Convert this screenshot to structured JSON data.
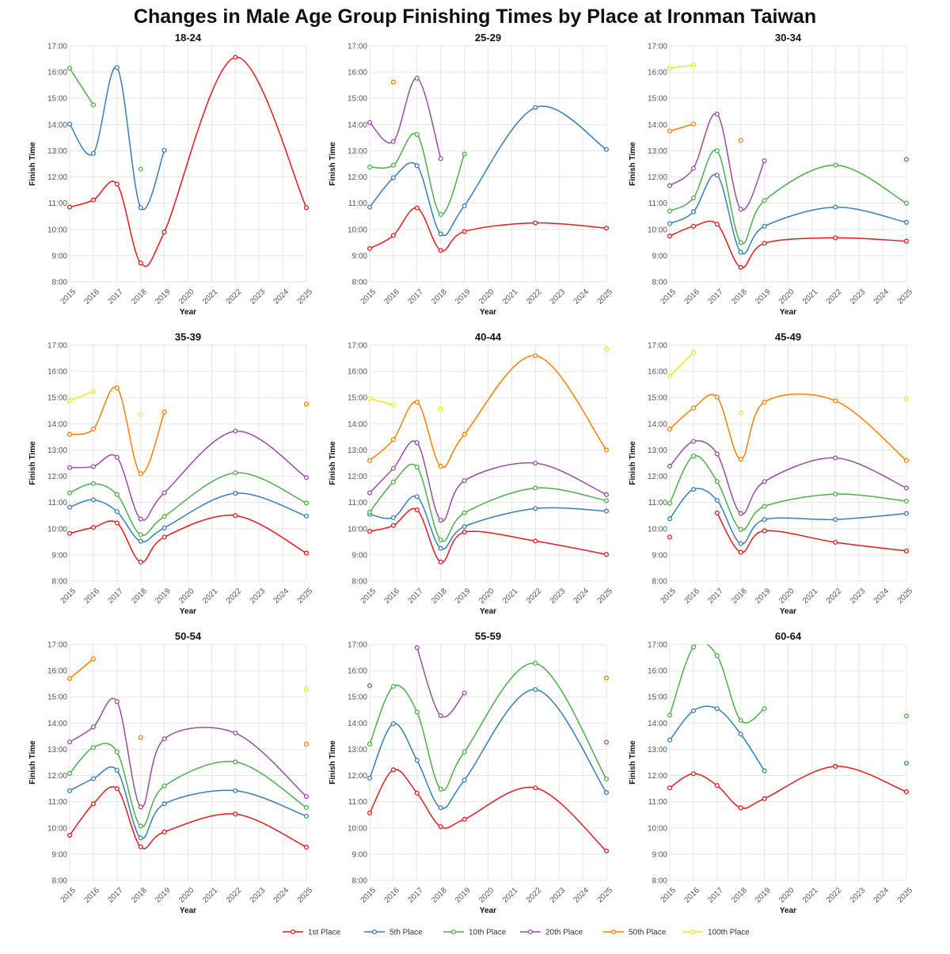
{
  "chart_data": {
    "type": "line",
    "title": "Changes in Male Age Group Finishing Times by Place at Ironman Taiwan",
    "xlabel": "Year",
    "ylabel": "Finish Time",
    "x_ticks": [
      "2015",
      "2016",
      "2017",
      "2018",
      "2019",
      "2020",
      "2021",
      "2022",
      "2023",
      "2024",
      "2025"
    ],
    "y_ticks": [
      "8:00",
      "9:00",
      "10:00",
      "11:00",
      "12:00",
      "13:00",
      "14:00",
      "15:00",
      "16:00",
      "17:00"
    ],
    "xlim": [
      2015,
      2025
    ],
    "ylim_hours": [
      8,
      17
    ],
    "years": [
      2015,
      2016,
      2017,
      2018,
      2019,
      2022,
      2025
    ],
    "value_units": "hours (decimal)",
    "grid": true,
    "legend_placement": "bottom-center",
    "series_meta": [
      {
        "name": "1st Place",
        "color": "#e41a1c"
      },
      {
        "name": "5th Place",
        "color": "#377eb8"
      },
      {
        "name": "10th Place",
        "color": "#4daf4a"
      },
      {
        "name": "20th Place",
        "color": "#984ea3"
      },
      {
        "name": "50th Place",
        "color": "#ff7f00"
      },
      {
        "name": "100th Place",
        "color": "#e8e82a"
      }
    ],
    "panels": [
      {
        "title": "18-24",
        "series": [
          [
            10.85,
            11.12,
            11.73,
            8.72,
            9.9,
            16.57,
            10.83
          ],
          [
            14.02,
            12.9,
            16.17,
            10.83,
            13.02,
            null,
            null
          ],
          [
            16.15,
            14.75,
            null,
            12.3,
            null,
            null,
            null
          ],
          [
            null,
            null,
            null,
            null,
            null,
            null,
            null
          ],
          [
            null,
            null,
            null,
            null,
            null,
            null,
            null
          ],
          [
            null,
            null,
            null,
            null,
            null,
            null,
            null
          ]
        ]
      },
      {
        "title": "25-29",
        "series": [
          [
            9.27,
            9.77,
            10.82,
            9.2,
            9.92,
            10.25,
            10.05
          ],
          [
            10.85,
            11.97,
            12.43,
            9.83,
            10.9,
            14.65,
            13.05
          ],
          [
            12.38,
            12.45,
            13.62,
            10.57,
            12.88,
            null,
            null
          ],
          [
            14.08,
            13.35,
            15.77,
            12.7,
            null,
            null,
            null
          ],
          [
            null,
            15.62,
            null,
            null,
            null,
            null,
            null
          ],
          [
            null,
            null,
            null,
            null,
            null,
            null,
            null
          ]
        ]
      },
      {
        "title": "30-34",
        "series": [
          [
            9.75,
            10.12,
            10.2,
            8.55,
            9.47,
            9.68,
            9.55
          ],
          [
            10.22,
            10.67,
            12.07,
            9.13,
            10.12,
            10.85,
            10.27
          ],
          [
            10.7,
            11.2,
            13.0,
            9.5,
            11.1,
            12.45,
            11.0
          ],
          [
            11.67,
            12.33,
            14.4,
            10.77,
            12.62,
            null,
            12.67
          ],
          [
            13.75,
            14.02,
            null,
            13.4,
            null,
            null,
            null
          ],
          [
            16.15,
            16.27,
            null,
            null,
            null,
            null,
            null
          ]
        ]
      },
      {
        "title": "35-39",
        "series": [
          [
            9.82,
            10.05,
            10.22,
            8.73,
            9.68,
            10.5,
            9.07
          ],
          [
            10.82,
            11.1,
            10.65,
            9.52,
            10.03,
            11.35,
            10.48
          ],
          [
            11.37,
            11.72,
            11.3,
            9.77,
            10.47,
            12.13,
            10.98
          ],
          [
            12.33,
            12.37,
            12.72,
            10.37,
            11.37,
            13.72,
            11.95
          ],
          [
            13.6,
            13.8,
            15.37,
            12.1,
            14.45,
            null,
            14.75
          ],
          [
            14.88,
            15.23,
            null,
            14.35,
            null,
            null,
            null
          ]
        ]
      },
      {
        "title": "40-44",
        "series": [
          [
            9.9,
            10.12,
            10.72,
            8.73,
            9.87,
            9.53,
            9.02
          ],
          [
            10.55,
            10.42,
            11.22,
            9.25,
            10.08,
            10.77,
            10.67
          ],
          [
            10.63,
            11.78,
            12.35,
            9.57,
            10.6,
            11.55,
            11.07
          ],
          [
            11.37,
            12.3,
            13.28,
            10.32,
            11.83,
            12.5,
            11.3
          ],
          [
            12.6,
            13.4,
            14.83,
            12.38,
            13.6,
            16.6,
            13.0
          ],
          [
            14.97,
            14.72,
            null,
            14.57,
            null,
            null,
            16.85
          ]
        ]
      },
      {
        "title": "45-49",
        "series": [
          [
            9.68,
            null,
            10.6,
            9.1,
            9.92,
            9.48,
            9.15
          ],
          [
            10.38,
            11.5,
            11.08,
            9.43,
            10.35,
            10.35,
            10.58
          ],
          [
            10.97,
            12.77,
            11.8,
            9.97,
            10.85,
            11.32,
            11.05
          ],
          [
            12.38,
            13.33,
            12.85,
            10.58,
            11.8,
            12.7,
            11.55
          ],
          [
            13.8,
            14.6,
            15.02,
            12.65,
            14.83,
            14.88,
            12.6
          ],
          [
            15.82,
            16.72,
            null,
            14.42,
            null,
            null,
            14.95
          ]
        ]
      },
      {
        "title": "50-54",
        "series": [
          [
            9.72,
            10.92,
            11.5,
            9.28,
            9.85,
            10.53,
            9.27
          ],
          [
            11.42,
            11.88,
            12.2,
            9.62,
            10.92,
            11.42,
            10.45
          ],
          [
            12.08,
            13.07,
            12.9,
            10.07,
            11.6,
            12.52,
            10.78
          ],
          [
            13.28,
            13.85,
            14.82,
            10.8,
            13.4,
            13.62,
            11.2
          ],
          [
            15.7,
            16.45,
            null,
            13.45,
            null,
            null,
            13.2
          ],
          [
            null,
            null,
            null,
            null,
            null,
            null,
            15.28
          ]
        ]
      },
      {
        "title": "55-59",
        "series": [
          [
            10.57,
            12.22,
            11.33,
            10.05,
            10.33,
            11.53,
            9.12
          ],
          [
            11.9,
            13.98,
            12.58,
            10.77,
            11.82,
            15.28,
            11.35
          ],
          [
            13.2,
            15.4,
            14.42,
            11.48,
            12.9,
            16.28,
            11.87
          ],
          [
            15.43,
            null,
            16.88,
            14.28,
            15.15,
            null,
            13.27
          ],
          [
            null,
            null,
            null,
            null,
            null,
            null,
            15.72
          ],
          [
            null,
            null,
            null,
            null,
            null,
            null,
            null
          ]
        ]
      },
      {
        "title": "60-64",
        "series": [
          [
            11.53,
            12.07,
            11.62,
            10.77,
            11.12,
            12.35,
            11.38
          ],
          [
            13.35,
            14.47,
            14.55,
            13.58,
            12.18,
            null,
            12.47
          ],
          [
            14.3,
            16.9,
            16.57,
            14.1,
            14.55,
            null,
            14.27
          ],
          [
            null,
            null,
            null,
            null,
            null,
            null,
            null
          ],
          [
            null,
            null,
            null,
            null,
            null,
            null,
            null
          ],
          [
            null,
            null,
            null,
            null,
            null,
            null,
            null
          ]
        ]
      }
    ]
  }
}
